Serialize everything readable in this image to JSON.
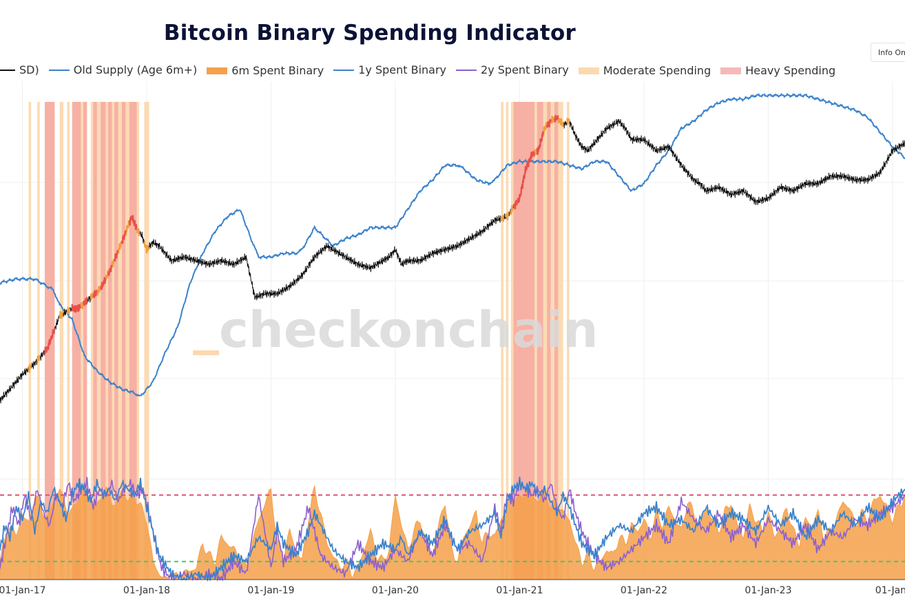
{
  "title": "Bitcoin Binary Spending Indicator",
  "info_button": "Info On",
  "legend": [
    {
      "label": "SD)",
      "kind": "line",
      "color": "#111111"
    },
    {
      "label": "Old Supply (Age 6m+)",
      "kind": "line",
      "color": "#3a82cc"
    },
    {
      "label": "6m Spent Binary",
      "kind": "fill",
      "color": "#f5a04a"
    },
    {
      "label": "1y Spent Binary",
      "kind": "line",
      "color": "#3a82cc"
    },
    {
      "label": "2y Spent Binary",
      "kind": "line",
      "color": "#8a5fd1"
    },
    {
      "label": "Moderate Spending",
      "kind": "fill",
      "color": "#fbd9b0"
    },
    {
      "label": "Heavy Spending",
      "kind": "fill",
      "color": "#f6b9b9"
    }
  ],
  "watermark": "checkonchain",
  "colors": {
    "price": "#111111",
    "old_supply": "#3a82cc",
    "spent_6m": "#f5a04a",
    "spent_1y": "#3a82cc",
    "spent_2y": "#8a5fd1",
    "moderate": "#fbd9b0",
    "heavy": "#f6a79a",
    "heavy_threshold": "#e0506e",
    "low_threshold": "#4cc36a"
  },
  "chart_data": {
    "type": "line",
    "title": "Bitcoin Binary Spending Indicator",
    "x_tick_labels": [
      "01-Jan-17",
      "01-Jan-18",
      "01-Jan-19",
      "01-Jan-20",
      "01-Jan-21",
      "01-Jan-22",
      "01-Jan-23",
      "01-Jan-"
    ],
    "x_range": [
      2016.82,
      2024.1
    ],
    "binary_range": [
      0,
      15
    ],
    "heavy_threshold": 14,
    "low_threshold": 3,
    "price_log_index": {
      "x": [
        2016.82,
        2016.9,
        2017.0,
        2017.1,
        2017.2,
        2017.3,
        2017.4,
        2017.45,
        2017.55,
        2017.62,
        2017.7,
        2017.8,
        2017.88,
        2017.93,
        2017.96,
        2018.0,
        2018.05,
        2018.1,
        2018.2,
        2018.3,
        2018.4,
        2018.5,
        2018.6,
        2018.7,
        2018.8,
        2018.87,
        2018.95,
        2019.05,
        2019.15,
        2019.25,
        2019.35,
        2019.45,
        2019.5,
        2019.6,
        2019.7,
        2019.8,
        2019.9,
        2019.95,
        2020.0,
        2020.05,
        2020.1,
        2020.2,
        2020.3,
        2020.4,
        2020.5,
        2020.6,
        2020.7,
        2020.8,
        2020.9,
        2021.0,
        2021.05,
        2021.1,
        2021.15,
        2021.2,
        2021.25,
        2021.3,
        2021.35,
        2021.4,
        2021.45,
        2021.5,
        2021.55,
        2021.6,
        2021.7,
        2021.8,
        2021.85,
        2021.9,
        2022.0,
        2022.1,
        2022.2,
        2022.3,
        2022.4,
        2022.45,
        2022.5,
        2022.6,
        2022.7,
        2022.8,
        2022.9,
        2023.0,
        2023.1,
        2023.2,
        2023.3,
        2023.4,
        2023.5,
        2023.6,
        2023.7,
        2023.8,
        2023.9,
        2024.0,
        2024.1
      ],
      "y": [
        2.0,
        2.3,
        2.7,
        3.0,
        3.4,
        4.3,
        4.5,
        4.5,
        4.8,
        5.0,
        5.5,
        6.3,
        7.0,
        6.6,
        6.5,
        6.1,
        6.3,
        6.2,
        5.8,
        5.9,
        5.8,
        5.7,
        5.8,
        5.7,
        5.9,
        4.8,
        4.9,
        4.9,
        5.1,
        5.4,
        5.9,
        6.2,
        6.1,
        5.9,
        5.7,
        5.6,
        5.8,
        5.9,
        6.1,
        5.7,
        5.8,
        5.8,
        6.0,
        6.1,
        6.2,
        6.4,
        6.6,
        6.9,
        7.0,
        7.5,
        8.3,
        8.7,
        8.8,
        9.4,
        9.6,
        9.7,
        9.5,
        9.6,
        9.2,
        8.9,
        8.8,
        9.0,
        9.4,
        9.6,
        9.4,
        9.1,
        9.1,
        8.8,
        8.9,
        8.4,
        8.0,
        7.9,
        7.7,
        7.8,
        7.6,
        7.7,
        7.4,
        7.5,
        7.8,
        7.7,
        7.9,
        7.9,
        8.1,
        8.1,
        8.0,
        8.0,
        8.2,
        8.8,
        9.0
      ]
    },
    "old_supply_index": {
      "x": [
        2016.82,
        2016.95,
        2017.1,
        2017.25,
        2017.3,
        2017.4,
        2017.5,
        2017.6,
        2017.7,
        2017.8,
        2017.9,
        2017.95,
        2018.05,
        2018.15,
        2018.25,
        2018.35,
        2018.45,
        2018.55,
        2018.65,
        2018.75,
        2018.85,
        2018.9,
        2019.0,
        2019.1,
        2019.2,
        2019.25,
        2019.35,
        2019.5,
        2019.6,
        2019.7,
        2019.8,
        2019.9,
        2020.0,
        2020.1,
        2020.2,
        2020.3,
        2020.4,
        2020.5,
        2020.55,
        2020.65,
        2020.75,
        2020.8,
        2020.9,
        2021.0,
        2021.1,
        2021.2,
        2021.3,
        2021.4,
        2021.5,
        2021.6,
        2021.7,
        2021.8,
        2021.9,
        2022.0,
        2022.1,
        2022.2,
        2022.3,
        2022.4,
        2022.5,
        2022.6,
        2022.7,
        2022.8,
        2022.9,
        2023.0,
        2023.1,
        2023.2,
        2023.3,
        2023.4,
        2023.5,
        2023.6,
        2023.7,
        2023.8,
        2023.9,
        2024.0,
        2024.1
      ],
      "y": [
        5.2,
        5.3,
        5.3,
        5.0,
        4.6,
        4.2,
        3.2,
        2.8,
        2.5,
        2.3,
        2.2,
        2.1,
        2.5,
        3.3,
        4.0,
        5.2,
        6.0,
        6.6,
        7.0,
        7.2,
        6.3,
        5.9,
        5.9,
        6.0,
        6.0,
        6.1,
        6.7,
        6.2,
        6.4,
        6.5,
        6.7,
        6.7,
        6.7,
        7.2,
        7.7,
        8.0,
        8.4,
        8.4,
        8.3,
        8.0,
        7.9,
        8.0,
        8.4,
        8.5,
        8.5,
        8.5,
        8.5,
        8.4,
        8.3,
        8.5,
        8.5,
        8.1,
        7.7,
        7.9,
        8.4,
        8.8,
        9.4,
        9.6,
        9.9,
        10.1,
        10.2,
        10.2,
        10.3,
        10.3,
        10.3,
        10.3,
        10.3,
        10.2,
        10.1,
        10.0,
        9.9,
        9.7,
        9.3,
        8.9,
        8.6
      ]
    },
    "moderate_periods": [
      [
        2017.05,
        2017.07
      ],
      [
        2017.12,
        2017.14
      ],
      [
        2017.3,
        2017.33
      ],
      [
        2017.36,
        2017.38
      ],
      [
        2017.47,
        2017.49
      ],
      [
        2017.55,
        2017.57
      ],
      [
        2017.6,
        2017.63
      ],
      [
        2017.67,
        2017.69
      ],
      [
        2017.72,
        2017.74
      ],
      [
        2017.77,
        2017.8
      ],
      [
        2017.83,
        2017.86
      ],
      [
        2017.92,
        2017.94
      ],
      [
        2017.98,
        2018.02
      ],
      [
        2020.85,
        2020.87
      ],
      [
        2020.89,
        2020.91
      ],
      [
        2020.93,
        2020.95
      ],
      [
        2021.12,
        2021.14
      ],
      [
        2021.19,
        2021.22
      ],
      [
        2021.25,
        2021.28
      ],
      [
        2021.31,
        2021.35
      ],
      [
        2021.38,
        2021.4
      ]
    ],
    "heavy_periods": [
      [
        2017.18,
        2017.26
      ],
      [
        2017.4,
        2017.47
      ],
      [
        2017.49,
        2017.52
      ],
      [
        2017.57,
        2017.6
      ],
      [
        2017.63,
        2017.67
      ],
      [
        2017.69,
        2017.72
      ],
      [
        2017.74,
        2017.77
      ],
      [
        2017.8,
        2017.83
      ],
      [
        2017.86,
        2017.92
      ],
      [
        2020.95,
        2021.12
      ],
      [
        2021.14,
        2021.19
      ],
      [
        2021.22,
        2021.25
      ],
      [
        2021.28,
        2021.31
      ]
    ],
    "spent_6m_binary": {
      "x": [
        2016.82,
        2016.85,
        2016.88,
        2016.92,
        2016.95,
        2017.0,
        2017.05,
        2017.1,
        2017.15,
        2017.2,
        2017.25,
        2017.3,
        2017.35,
        2017.4,
        2017.45,
        2017.5,
        2017.55,
        2017.6,
        2017.65,
        2017.7,
        2017.75,
        2017.8,
        2017.85,
        2017.9,
        2017.95,
        2018.0,
        2018.05,
        2018.1,
        2018.15,
        2018.2,
        2018.3,
        2018.4,
        2018.45,
        2018.5,
        2018.55,
        2018.6,
        2018.7,
        2018.8,
        2018.9,
        2019.0,
        2019.05,
        2019.1,
        2019.15,
        2019.2,
        2019.25,
        2019.3,
        2019.35,
        2019.4,
        2019.45,
        2019.5,
        2019.55,
        2019.6,
        2019.65,
        2019.7,
        2019.75,
        2019.8,
        2019.85,
        2019.9,
        2019.95,
        2020.0,
        2020.05,
        2020.1,
        2020.15,
        2020.2,
        2020.25,
        2020.3,
        2020.35,
        2020.4,
        2020.45,
        2020.5,
        2020.55,
        2020.6,
        2020.65,
        2020.7,
        2020.75,
        2020.8,
        2020.85,
        2020.9,
        2020.95,
        2021.0,
        2021.05,
        2021.1,
        2021.15,
        2021.2,
        2021.25,
        2021.3,
        2021.35,
        2021.4,
        2021.45,
        2021.5,
        2021.55,
        2021.6,
        2021.65,
        2021.7,
        2021.75,
        2021.8,
        2021.85,
        2021.9,
        2021.95,
        2022.0,
        2022.05,
        2022.1,
        2022.15,
        2022.2,
        2022.25,
        2022.3,
        2022.35,
        2022.4,
        2022.45,
        2022.5,
        2022.55,
        2022.6,
        2022.65,
        2022.7,
        2022.75,
        2022.8,
        2022.85,
        2022.9,
        2022.95,
        2023.0,
        2023.05,
        2023.1,
        2023.15,
        2023.2,
        2023.25,
        2023.3,
        2023.35,
        2023.4,
        2023.45,
        2023.5,
        2023.55,
        2023.6,
        2023.65,
        2023.7,
        2023.75,
        2023.8,
        2023.85,
        2023.9,
        2023.95,
        2024.0,
        2024.05,
        2024.1
      ],
      "y": [
        3,
        6,
        8,
        10,
        7,
        11,
        9,
        14,
        12,
        10,
        13,
        15,
        12,
        11,
        14,
        15,
        13,
        12,
        15,
        14,
        12,
        15,
        13,
        14,
        12,
        10,
        3,
        1,
        0,
        0,
        1,
        2,
        6,
        4,
        3,
        7,
        5,
        2,
        10,
        15,
        6,
        4,
        8,
        5,
        3,
        10,
        15,
        11,
        6,
        4,
        2,
        3,
        1,
        2,
        5,
        8,
        4,
        3,
        5,
        14,
        9,
        5,
        8,
        10,
        6,
        4,
        9,
        13,
        5,
        3,
        7,
        9,
        11,
        6,
        8,
        7,
        10,
        12,
        14,
        13,
        15,
        14,
        13,
        15,
        12,
        13,
        11,
        10,
        6,
        3,
        4,
        2,
        3,
        5,
        4,
        7,
        6,
        9,
        8,
        10,
        7,
        11,
        9,
        12,
        10,
        8,
        13,
        11,
        9,
        12,
        10,
        8,
        11,
        13,
        9,
        7,
        12,
        10,
        8,
        11,
        7,
        9,
        12,
        8,
        6,
        10,
        9,
        11,
        7,
        8,
        10,
        13,
        12,
        9,
        11,
        10,
        13,
        14,
        12,
        10,
        12,
        14
      ]
    },
    "spent_1y_binary": {
      "x": [
        2016.82,
        2016.86,
        2016.9,
        2016.95,
        2017.0,
        2017.05,
        2017.1,
        2017.15,
        2017.2,
        2017.25,
        2017.3,
        2017.35,
        2017.4,
        2017.45,
        2017.5,
        2017.55,
        2017.6,
        2017.65,
        2017.7,
        2017.75,
        2017.8,
        2017.85,
        2017.9,
        2017.95,
        2018.0,
        2018.05,
        2018.1,
        2018.2,
        2018.3,
        2018.4,
        2018.5,
        2018.6,
        2018.7,
        2018.8,
        2018.9,
        2019.0,
        2019.05,
        2019.1,
        2019.2,
        2019.3,
        2019.35,
        2019.4,
        2019.5,
        2019.6,
        2019.7,
        2019.8,
        2019.9,
        2020.0,
        2020.05,
        2020.1,
        2020.2,
        2020.3,
        2020.4,
        2020.45,
        2020.5,
        2020.6,
        2020.7,
        2020.8,
        2020.85,
        2020.9,
        2020.95,
        2021.0,
        2021.05,
        2021.1,
        2021.15,
        2021.2,
        2021.25,
        2021.3,
        2021.35,
        2021.4,
        2021.45,
        2021.5,
        2021.6,
        2021.7,
        2021.8,
        2021.9,
        2022.0,
        2022.1,
        2022.2,
        2022.3,
        2022.4,
        2022.5,
        2022.6,
        2022.7,
        2022.8,
        2022.9,
        2023.0,
        2023.1,
        2023.2,
        2023.3,
        2023.4,
        2023.5,
        2023.6,
        2023.7,
        2023.8,
        2023.9,
        2024.0,
        2024.1
      ],
      "y": [
        5,
        9,
        7,
        12,
        10,
        14,
        8,
        13,
        11,
        15,
        13,
        10,
        14,
        16,
        15,
        13,
        16,
        14,
        15,
        13,
        16,
        15,
        14,
        16,
        12,
        8,
        4,
        1,
        0,
        1,
        0,
        2,
        4,
        3,
        7,
        5,
        9,
        6,
        4,
        8,
        11,
        9,
        5,
        3,
        2,
        4,
        6,
        5,
        7,
        4,
        8,
        6,
        10,
        7,
        5,
        8,
        9,
        11,
        7,
        13,
        15,
        16,
        15,
        16,
        14,
        15,
        13,
        11,
        14,
        12,
        9,
        6,
        4,
        7,
        9,
        8,
        11,
        12,
        9,
        10,
        8,
        12,
        9,
        11,
        10,
        8,
        12,
        9,
        11,
        7,
        10,
        8,
        11,
        9,
        12,
        10,
        13,
        15
      ]
    },
    "spent_2y_binary": {
      "x": [
        2016.82,
        2016.87,
        2016.92,
        2016.97,
        2017.02,
        2017.07,
        2017.12,
        2017.17,
        2017.22,
        2017.27,
        2017.32,
        2017.37,
        2017.42,
        2017.47,
        2017.52,
        2017.57,
        2017.62,
        2017.67,
        2017.72,
        2017.77,
        2017.82,
        2017.87,
        2017.92,
        2017.97,
        2018.02,
        2018.07,
        2018.12,
        2018.2,
        2018.3,
        2018.4,
        2018.5,
        2018.6,
        2018.7,
        2018.8,
        2018.9,
        2019.0,
        2019.05,
        2019.1,
        2019.2,
        2019.3,
        2019.4,
        2019.5,
        2019.6,
        2019.7,
        2019.8,
        2019.9,
        2020.0,
        2020.1,
        2020.2,
        2020.3,
        2020.4,
        2020.5,
        2020.6,
        2020.7,
        2020.8,
        2020.85,
        2020.9,
        2020.95,
        2021.0,
        2021.05,
        2021.1,
        2021.15,
        2021.2,
        2021.25,
        2021.3,
        2021.35,
        2021.4,
        2021.45,
        2021.5,
        2021.6,
        2021.7,
        2021.8,
        2021.9,
        2022.0,
        2022.1,
        2022.2,
        2022.3,
        2022.4,
        2022.5,
        2022.6,
        2022.7,
        2022.8,
        2022.9,
        2023.0,
        2023.1,
        2023.2,
        2023.3,
        2023.4,
        2023.5,
        2023.6,
        2023.7,
        2023.8,
        2023.9,
        2024.0,
        2024.1
      ],
      "y": [
        2,
        7,
        12,
        9,
        14,
        10,
        15,
        11,
        9,
        14,
        12,
        16,
        13,
        15,
        16,
        12,
        15,
        14,
        16,
        13,
        15,
        16,
        14,
        15,
        11,
        6,
        2,
        0,
        1,
        0,
        1,
        0,
        3,
        1,
        14,
        2,
        8,
        3,
        5,
        12,
        4,
        2,
        1,
        6,
        3,
        2,
        5,
        3,
        8,
        4,
        9,
        5,
        6,
        3,
        12,
        8,
        14,
        13,
        16,
        15,
        14,
        15,
        13,
        16,
        12,
        10,
        15,
        11,
        8,
        4,
        2,
        3,
        5,
        7,
        9,
        6,
        13,
        10,
        8,
        11,
        7,
        9,
        6,
        10,
        8,
        6,
        9,
        5,
        8,
        7,
        10,
        9,
        11,
        12,
        14
      ]
    }
  }
}
